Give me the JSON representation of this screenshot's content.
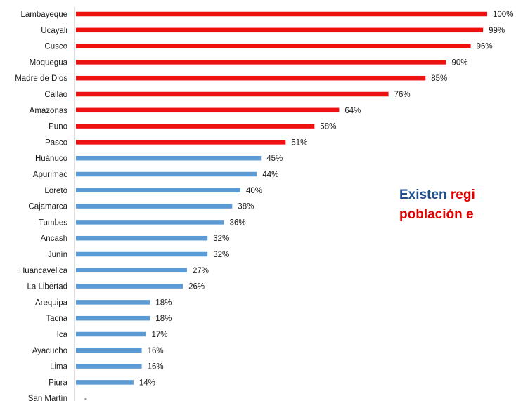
{
  "chart_data": {
    "type": "bar",
    "orientation": "horizontal",
    "categories": [
      "Lambayeque",
      "Ucayali",
      "Cusco",
      "Moquegua",
      "Madre de Dios",
      "Callao",
      "Amazonas",
      "Puno",
      "Pasco",
      "Huánuco",
      "Apurímac",
      "Loreto",
      "Cajamarca",
      "Tumbes",
      "Ancash",
      "Junín",
      "Huancavelica",
      "La Libertad",
      "Arequipa",
      "Tacna",
      "Ica",
      "Ayacucho",
      "Lima",
      "Piura",
      "San Martín"
    ],
    "values": [
      100,
      99,
      96,
      90,
      85,
      76,
      64,
      58,
      51,
      45,
      44,
      40,
      38,
      36,
      32,
      32,
      27,
      26,
      18,
      18,
      17,
      16,
      16,
      14,
      null
    ],
    "value_labels": [
      "100%",
      "99%",
      "96%",
      "90%",
      "85%",
      "76%",
      "64%",
      "58%",
      "51%",
      "45%",
      "44%",
      "40%",
      "38%",
      "36%",
      "32%",
      "32%",
      "27%",
      "26%",
      "18%",
      "18%",
      "17%",
      "16%",
      "16%",
      "14%",
      "-"
    ],
    "colors": {
      "high": "#ee1111",
      "low": "#5b9bd5"
    },
    "high_count": 9,
    "xlim": [
      0,
      100
    ],
    "grid": false
  },
  "annotation": {
    "line1_a": "Existen ",
    "line1_b": "regi",
    "line2": "población e"
  }
}
